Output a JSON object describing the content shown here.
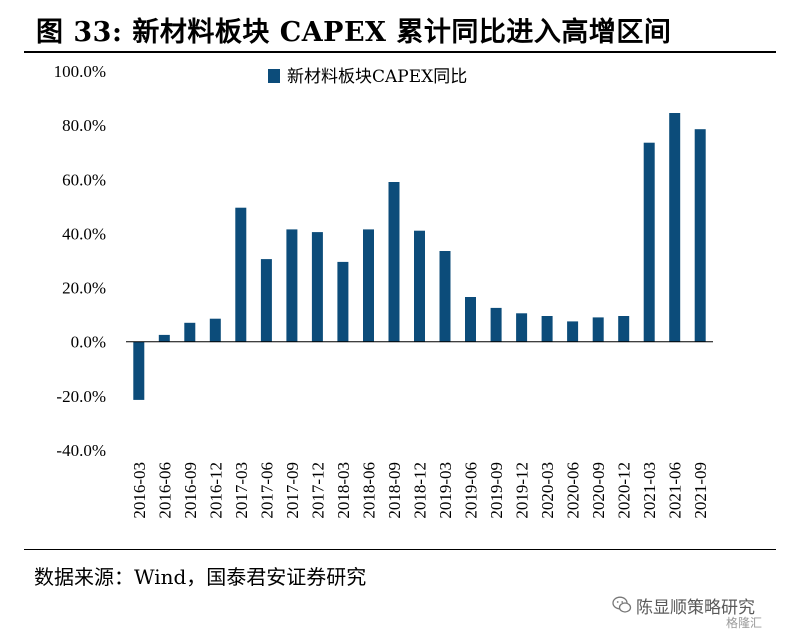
{
  "header": {
    "title": "图 33: 新材料板块 CAPEX 累计同比进入高增区间"
  },
  "footer": {
    "source": "数据来源：Wind，国泰君安证券研究"
  },
  "watermark": {
    "text": "陈显顺策略研究",
    "icon": "wechat-icon",
    "brand": "格隆汇"
  },
  "chart_data": {
    "type": "bar",
    "categories": [
      "2016-03",
      "2016-06",
      "2016-09",
      "2016-12",
      "2017-03",
      "2017-06",
      "2017-09",
      "2017-12",
      "2018-03",
      "2018-06",
      "2018-09",
      "2018-12",
      "2019-03",
      "2019-06",
      "2019-09",
      "2019-12",
      "2020-03",
      "2020-06",
      "2020-09",
      "2020-12",
      "2021-03",
      "2021-06",
      "2021-09"
    ],
    "series": [
      {
        "name": "新材料板块CAPEX同比",
        "values": [
          -21.5,
          2.5,
          7.0,
          8.5,
          49.5,
          30.5,
          41.5,
          40.5,
          29.5,
          41.5,
          59.0,
          41.0,
          33.5,
          16.5,
          12.5,
          10.5,
          9.5,
          7.5,
          9.0,
          9.5,
          73.5,
          84.5,
          78.5
        ]
      }
    ],
    "ylim": [
      -40,
      100
    ],
    "yticks": [
      "100.0%",
      "80.0%",
      "60.0%",
      "40.0%",
      "20.0%",
      "0.0%",
      "-20.0%",
      "-40.0%"
    ],
    "ytick_values": [
      100,
      80,
      60,
      40,
      20,
      0,
      -20,
      -40
    ],
    "bar_color": "#0c4c7a",
    "grid": false,
    "legend_position": "top"
  }
}
